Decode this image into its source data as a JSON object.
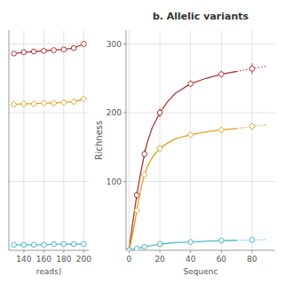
{
  "chart_data": [
    {
      "type": "line",
      "xlabel": "reads)",
      "x": [
        130,
        140,
        150,
        160,
        170,
        180,
        190,
        200
      ],
      "series": [
        {
          "color": "#b03535",
          "marker": "circle",
          "values": [
            286,
            288,
            289,
            290,
            291,
            292,
            294,
            300
          ],
          "errors": [
            3,
            2.5,
            2.5,
            2.5,
            2.5,
            2.5,
            2.5,
            3.5
          ]
        },
        {
          "color": "#e0a020",
          "marker": "diamond",
          "values": [
            212,
            213,
            213,
            214,
            214,
            215,
            216,
            220
          ],
          "errors": [
            1.5,
            1.5,
            1.5,
            1.5,
            1.5,
            1.5,
            1.5,
            1.5
          ]
        },
        {
          "color": "#4db8cc",
          "marker": "circle",
          "values": [
            8,
            8,
            8,
            8,
            9,
            9,
            9,
            9
          ],
          "errors": [
            0.5,
            0.5,
            0.5,
            0.5,
            0.5,
            0.5,
            0.5,
            0.5
          ]
        }
      ],
      "xlim": [
        125,
        205
      ],
      "xticks": [
        140,
        160,
        180,
        200
      ],
      "ylim": [
        0,
        320
      ],
      "yticks": [
        100,
        200,
        300
      ],
      "grid": true,
      "tick_labels": "x"
    },
    {
      "type": "line",
      "title": "b. Allelic variants",
      "xlabel": "Sequenc",
      "ylabel": "Richness",
      "series": [
        {
          "type": "line",
          "color": "#b03535",
          "line_style": "solid",
          "x": [
            0,
            1,
            2,
            3,
            4,
            5,
            6,
            7,
            8,
            10,
            12,
            15,
            20,
            25,
            30,
            40,
            50,
            60,
            70
          ],
          "values": [
            0,
            18,
            34,
            50,
            65,
            80,
            93,
            106,
            118,
            140,
            158,
            178,
            200,
            216,
            228,
            242,
            250,
            256,
            260
          ]
        },
        {
          "type": "line",
          "color": "#b03535",
          "line_style": "dotted",
          "x": [
            70,
            80,
            90
          ],
          "values": [
            260,
            264,
            268
          ]
        },
        {
          "type": "scatter",
          "color": "#b03535",
          "marker": "circle",
          "x": [
            0,
            5,
            10,
            20,
            40,
            60,
            80
          ],
          "values": [
            0,
            80,
            140,
            200,
            242,
            256,
            264
          ],
          "errors": [
            0,
            6,
            6,
            7,
            5,
            5,
            8
          ]
        },
        {
          "type": "line",
          "color": "#e0a020",
          "line_style": "solid",
          "x": [
            0,
            1,
            2,
            3,
            4,
            5,
            6,
            7,
            8,
            10,
            12,
            15,
            20,
            25,
            30,
            40,
            50,
            60,
            70
          ],
          "values": [
            0,
            10,
            20,
            32,
            44,
            58,
            70,
            82,
            93,
            110,
            122,
            135,
            148,
            156,
            162,
            168,
            172,
            175,
            177
          ]
        },
        {
          "type": "line",
          "color": "#e0a020",
          "line_style": "dotted",
          "x": [
            70,
            80,
            90
          ],
          "values": [
            177,
            180,
            183
          ]
        },
        {
          "type": "scatter",
          "color": "#e0a020",
          "marker": "diamond",
          "x": [
            0,
            5,
            10,
            20,
            40,
            60,
            80
          ],
          "values": [
            0,
            58,
            110,
            148,
            168,
            175,
            180
          ],
          "errors": [
            0,
            4,
            4,
            4,
            3,
            3,
            4
          ]
        },
        {
          "type": "line",
          "color": "#4db8cc",
          "line_style": "solid",
          "x": [
            0,
            1,
            2,
            3,
            4,
            5,
            6,
            7,
            8,
            10,
            12,
            15,
            20,
            25,
            30,
            40,
            50,
            60,
            70
          ],
          "values": [
            0,
            0.5,
            1,
            1.5,
            2,
            2.5,
            3,
            3.5,
            4,
            5,
            6,
            7,
            9,
            10,
            11,
            12,
            13,
            14,
            14.5
          ]
        },
        {
          "type": "line",
          "color": "#4db8cc",
          "line_style": "dotted",
          "x": [
            70,
            80,
            90
          ],
          "values": [
            14.5,
            15,
            15.5
          ]
        },
        {
          "type": "scatter",
          "color": "#4db8cc",
          "marker": "circle",
          "x": [
            0,
            5,
            10,
            20,
            40,
            60,
            80
          ],
          "values": [
            0,
            2.5,
            5,
            9,
            12,
            14,
            15
          ],
          "errors": [
            0,
            0.4,
            0.5,
            0.6,
            0.7,
            0.8,
            0.9
          ]
        }
      ],
      "xlim": [
        -2,
        95
      ],
      "xticks": [
        0,
        20,
        40,
        60,
        80
      ],
      "ylim": [
        0,
        320
      ],
      "yticks": [
        100,
        200,
        300
      ],
      "grid": true
    }
  ]
}
